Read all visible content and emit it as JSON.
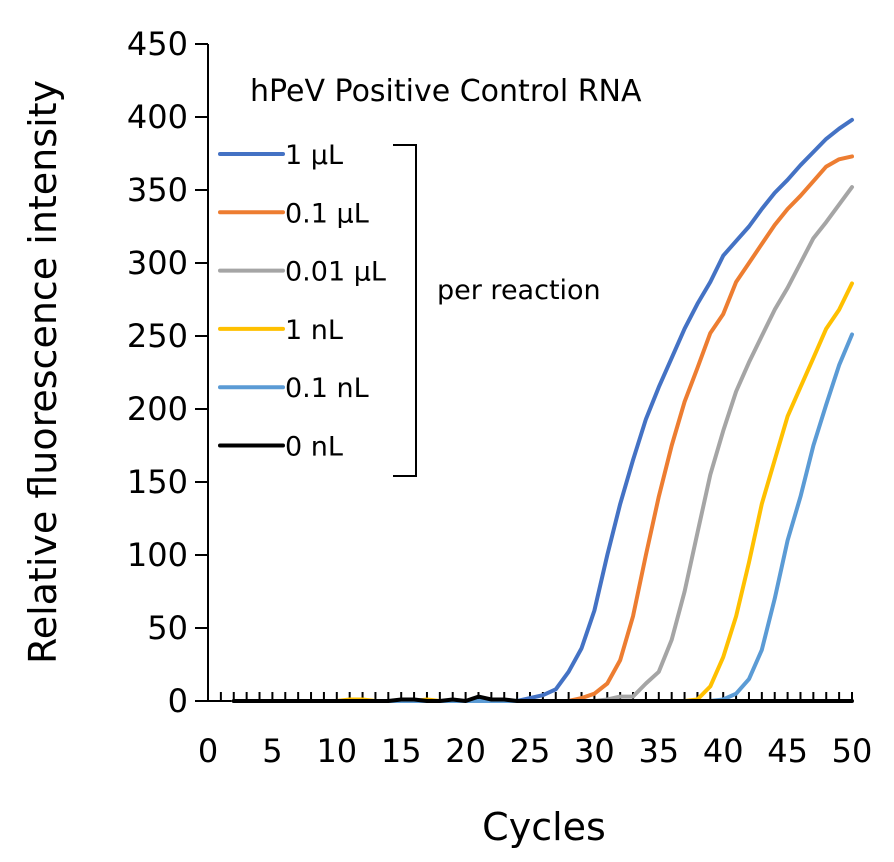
{
  "chart_data": {
    "type": "line",
    "title": "hPeV Positive Control RNA",
    "xlabel": "Cycles",
    "ylabel": "Relative fluorescence intensity",
    "xlim": [
      0,
      50
    ],
    "ylim": [
      0,
      450
    ],
    "x_ticks": [
      "0",
      "5",
      "10",
      "15",
      "20",
      "25",
      "30",
      "35",
      "40",
      "45",
      "50"
    ],
    "y_ticks": [
      "0",
      "50",
      "100",
      "150",
      "200",
      "250",
      "300",
      "350",
      "400",
      "450"
    ],
    "grid": false,
    "legend_position": "top-left",
    "legend_note": "per reaction",
    "x": [
      2,
      3,
      4,
      5,
      6,
      7,
      8,
      9,
      10,
      11,
      12,
      13,
      14,
      15,
      16,
      17,
      18,
      19,
      20,
      21,
      22,
      23,
      24,
      25,
      26,
      27,
      28,
      29,
      30,
      31,
      32,
      33,
      34,
      35,
      36,
      37,
      38,
      39,
      40,
      41,
      42,
      43,
      44,
      45,
      46,
      47,
      48,
      49,
      50
    ],
    "series": [
      {
        "name": "1 µL",
        "color": "#4472C4",
        "values": [
          0,
          0,
          0,
          0,
          0,
          0,
          0,
          0,
          0,
          0,
          0,
          0,
          0,
          0,
          0,
          0,
          0,
          0,
          0,
          0,
          0,
          0,
          0,
          2,
          4,
          8,
          20,
          36,
          62,
          100,
          135,
          165,
          193,
          215,
          235,
          255,
          272,
          287,
          305,
          315,
          325,
          337,
          348,
          357,
          367,
          376,
          385,
          392,
          398
        ]
      },
      {
        "name": "0.1 µL",
        "color": "#ED7D31",
        "values": [
          0,
          0,
          0,
          0,
          0,
          0,
          0,
          0,
          0,
          0,
          0,
          0,
          0,
          0,
          0,
          0,
          0,
          0,
          0,
          0,
          0,
          0,
          0,
          0,
          0,
          0,
          0,
          2,
          5,
          12,
          28,
          58,
          100,
          140,
          175,
          205,
          228,
          252,
          265,
          287,
          300,
          313,
          326,
          337,
          346,
          356,
          366,
          371,
          373
        ]
      },
      {
        "name": "0.01 µL",
        "color": "#A5A5A5",
        "values": [
          0,
          0,
          0,
          0,
          0,
          0,
          0,
          0,
          0,
          0,
          0,
          0,
          0,
          0,
          0,
          0,
          0,
          0,
          0,
          0,
          0,
          0,
          0,
          0,
          0,
          0,
          0,
          0,
          0,
          1,
          3,
          3,
          12,
          20,
          42,
          75,
          115,
          155,
          185,
          212,
          232,
          250,
          268,
          283,
          300,
          317,
          328,
          340,
          352
        ]
      },
      {
        "name": "1 nL",
        "color": "#FFC000",
        "values": [
          0,
          0,
          0,
          0,
          0,
          0,
          0,
          0,
          0,
          1,
          1,
          0,
          0,
          0,
          0,
          1,
          0,
          0,
          0,
          0,
          0,
          0,
          0,
          0,
          0,
          0,
          0,
          0,
          0,
          0,
          0,
          0,
          0,
          0,
          0,
          0,
          1,
          10,
          30,
          58,
          95,
          135,
          165,
          195,
          215,
          235,
          255,
          268,
          286
        ]
      },
      {
        "name": "0.1 nL",
        "color": "#5B9BD5",
        "values": [
          0,
          0,
          0,
          0,
          0,
          0,
          0,
          0,
          0,
          0,
          0,
          0,
          0,
          0,
          0,
          0,
          0,
          0,
          0,
          0,
          0,
          0,
          0,
          0,
          0,
          0,
          0,
          0,
          0,
          0,
          0,
          0,
          0,
          0,
          0,
          0,
          0,
          0,
          1,
          5,
          15,
          35,
          70,
          110,
          140,
          175,
          203,
          230,
          251
        ]
      },
      {
        "name": "0 nL",
        "color": "#000000",
        "values": [
          0,
          0,
          0,
          0,
          0,
          0,
          0,
          0,
          0,
          0,
          0,
          0,
          0,
          1,
          1,
          0,
          0,
          1,
          0,
          3,
          1,
          1,
          0,
          0,
          0,
          0,
          0,
          0,
          0,
          0,
          0,
          0,
          0,
          0,
          0,
          0,
          0,
          0,
          0,
          0,
          0,
          0,
          0,
          0,
          0,
          0,
          0,
          0,
          0
        ]
      }
    ]
  }
}
